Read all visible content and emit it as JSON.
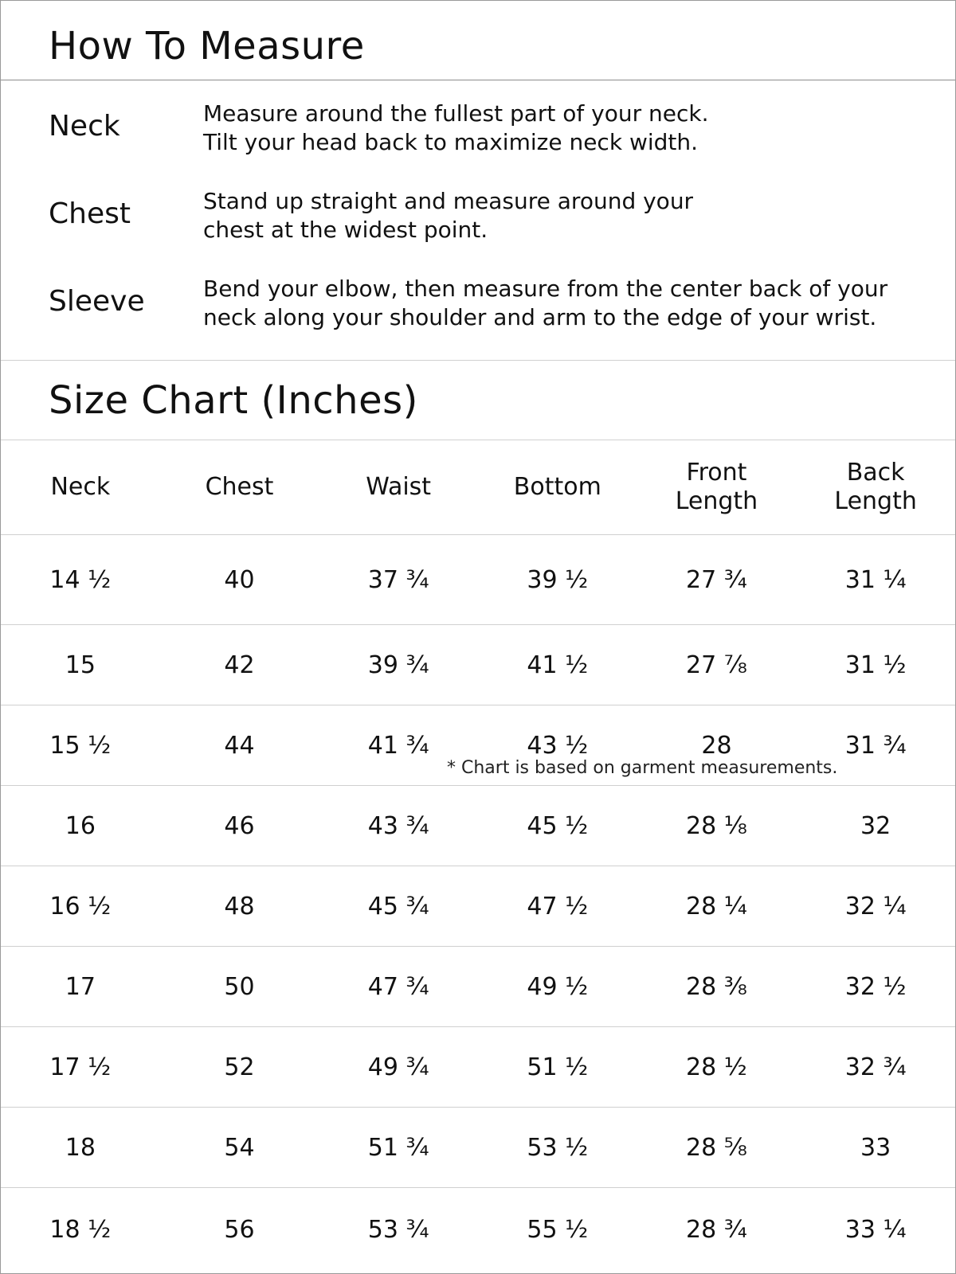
{
  "how_to": {
    "title": "How To Measure",
    "items": [
      {
        "label": "Neck",
        "text": "Measure around the fullest part of your neck.\nTilt your head back to maximize neck width."
      },
      {
        "label": "Chest",
        "text": "Stand up straight and measure around your\nchest at the widest point."
      },
      {
        "label": "Sleeve",
        "text": "Bend your elbow, then measure from the center back of your\nneck along your shoulder and arm to the edge of your wrist."
      }
    ]
  },
  "size_chart": {
    "title": "Size Chart (Inches)",
    "note": "* Chart is based on garment measurements.",
    "headers": [
      {
        "line1": "Neck",
        "line2": ""
      },
      {
        "line1": "Chest",
        "line2": ""
      },
      {
        "line1": "Waist",
        "line2": ""
      },
      {
        "line1": "Bottom",
        "line2": ""
      },
      {
        "line1": "Front",
        "line2": "Length"
      },
      {
        "line1": "Back",
        "line2": "Length"
      }
    ],
    "rows": [
      [
        "14 ½",
        "40",
        "37 ¾",
        "39 ½",
        "27 ¾",
        "31 ¼"
      ],
      [
        "15",
        "42",
        "39 ¾",
        "41 ½",
        "27 ⅞",
        "31 ½"
      ],
      [
        "15 ½",
        "44",
        "41 ¾",
        "43 ½",
        "28",
        "31 ¾"
      ],
      [
        "16",
        "46",
        "43 ¾",
        "45 ½",
        "28 ⅛",
        "32"
      ],
      [
        "16 ½",
        "48",
        "45 ¾",
        "47 ½",
        "28 ¼",
        "32 ¼"
      ],
      [
        "17",
        "50",
        "47 ¾",
        "49 ½",
        "28 ⅜",
        "32 ½"
      ],
      [
        "17 ½",
        "52",
        "49 ¾",
        "51 ½",
        "28 ½",
        "32 ¾"
      ],
      [
        "18",
        "54",
        "51 ¾",
        "53 ½",
        "28 ⅝",
        "33"
      ],
      [
        "18 ½",
        "56",
        "53 ¾",
        "55 ½",
        "28 ¾",
        "33 ¼"
      ]
    ]
  }
}
